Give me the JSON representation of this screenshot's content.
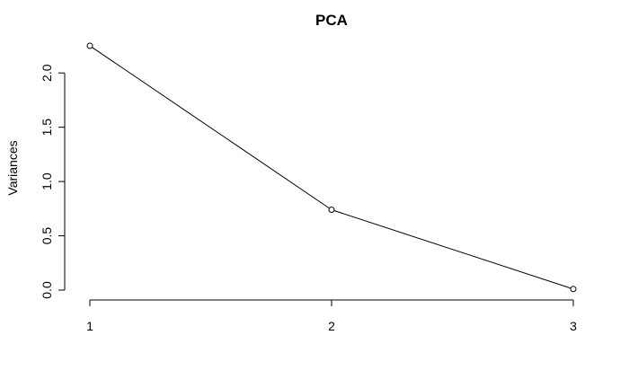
{
  "chart_data": {
    "type": "line",
    "title": "PCA",
    "xlabel": "",
    "ylabel": "Variances",
    "x": [
      1,
      2,
      3
    ],
    "values": [
      2.25,
      0.74,
      0.01
    ],
    "xticks": [
      "1",
      "2",
      "3"
    ],
    "yticks": [
      "0.0",
      "0.5",
      "1.0",
      "1.5",
      "2.0"
    ],
    "xlim": [
      1,
      3
    ],
    "ylim": [
      0,
      2.25
    ],
    "grid": false,
    "markers": "open-circle",
    "line_color": "#000000"
  }
}
